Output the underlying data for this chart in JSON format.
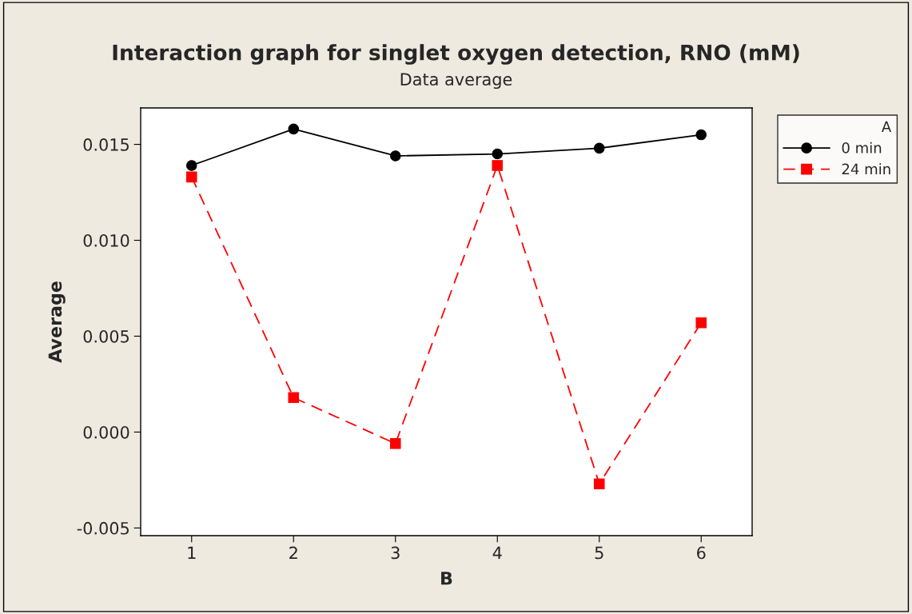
{
  "chart_data": {
    "type": "line",
    "title": "Interaction graph for singlet oxygen detection, RNO (mM)",
    "subtitle": "Data average",
    "xlabel": "B",
    "ylabel": "Average",
    "legend_title": "A",
    "x": [
      1,
      2,
      3,
      4,
      5,
      6
    ],
    "series": [
      {
        "name": "0 min",
        "color": "#000000",
        "marker": "circle",
        "line_style": "solid",
        "values": [
          0.0139,
          0.0158,
          0.0144,
          0.0145,
          0.0148,
          0.0155
        ]
      },
      {
        "name": "24 min",
        "color": "#ff0000",
        "marker": "square",
        "line_style": "dashed",
        "values": [
          0.0133,
          0.0018,
          -0.0006,
          0.0139,
          -0.0027,
          0.0057
        ]
      }
    ],
    "xlim": [
      0.5,
      6.5
    ],
    "xticks": [
      1,
      2,
      3,
      4,
      5,
      6
    ],
    "ylim": [
      -0.0054,
      0.0169
    ],
    "yticks": [
      {
        "value": -0.005,
        "label": "-0.005"
      },
      {
        "value": 0.0,
        "label": "0.000"
      },
      {
        "value": 0.005,
        "label": "0.005"
      },
      {
        "value": 0.01,
        "label": "0.010"
      },
      {
        "value": 0.015,
        "label": "0.015"
      }
    ],
    "grid": false,
    "legend": "right"
  }
}
